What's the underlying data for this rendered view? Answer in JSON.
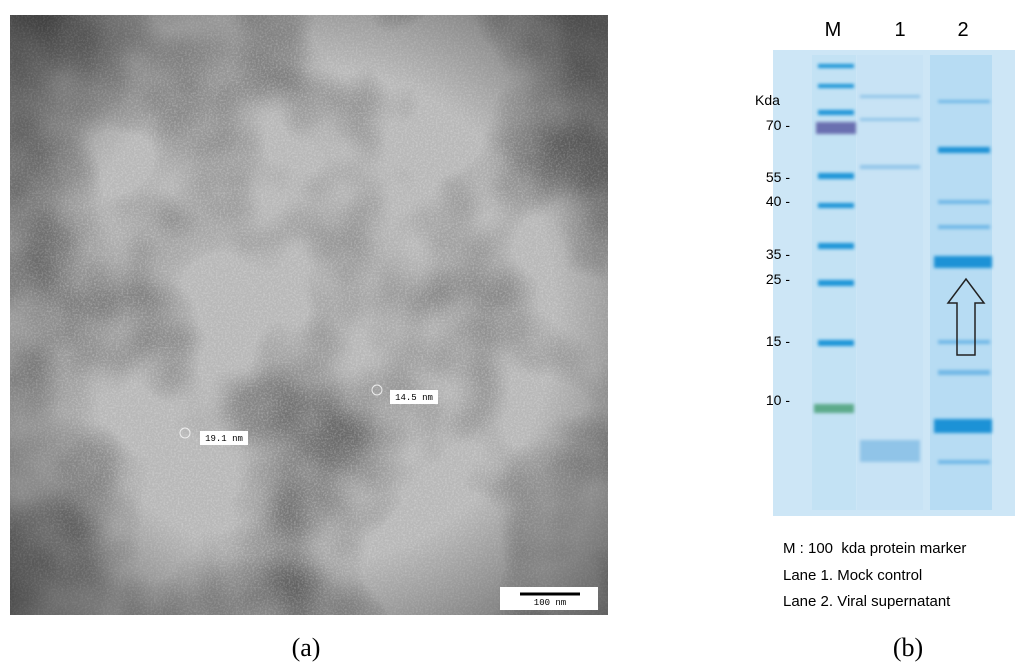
{
  "panel_a": {
    "measurements": [
      "19.1 nm",
      "14.5 nm"
    ],
    "scale_bar": "100 nm",
    "caption": "(a)"
  },
  "panel_b": {
    "lanes": [
      "M",
      "1",
      "2"
    ],
    "unit": "Kda",
    "markers": [
      "70 -",
      "55 -",
      "40 -",
      "35 -",
      "25 -",
      "15 -",
      "10 -"
    ],
    "legend": [
      "M : 100  kda protein marker",
      "Lane 1. Mock control",
      "Lane 2. Viral supernatant"
    ],
    "caption": "(b)"
  }
}
